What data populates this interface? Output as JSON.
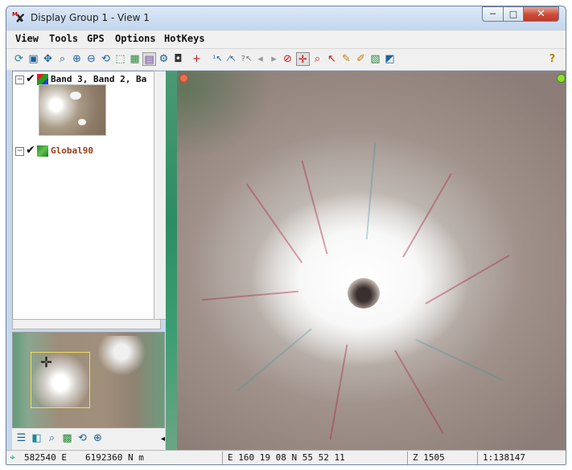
{
  "window": {
    "title": "Display Group 1 - View 1",
    "minimize_symbol": "─",
    "maximize_symbol": "□",
    "close_symbol": "✕"
  },
  "menu": {
    "items": [
      "View",
      "Tools",
      "GPS",
      "Options",
      "HotKeys"
    ]
  },
  "toolbar": {
    "help_glyph": "?"
  },
  "layers": {
    "items": [
      {
        "name": "Band 3, Band 2, Ba",
        "expanded": true,
        "visible": true,
        "icon": "rgb-raster-icon"
      },
      {
        "name": "Global90",
        "expanded": true,
        "visible": true,
        "icon": "elevation-raster-icon"
      }
    ]
  },
  "status": {
    "easting": "582540 E",
    "northing": "6192360 N m",
    "geographic": "E 160 19 08  N 55 52 11",
    "elevation": "Z 1505",
    "scale": "1:138147"
  },
  "colors": {
    "title_bar": "#c8d8ec",
    "close_button": "#c94a36",
    "overview_frame": "#f2dd5a",
    "red_indicator": "#ef6e4d",
    "green_indicator": "#8ae22e",
    "layer_name_global": "#9a3a17"
  }
}
